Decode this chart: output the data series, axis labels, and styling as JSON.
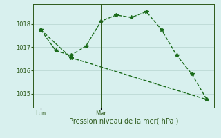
{
  "line1_x": [
    0,
    1,
    2,
    3,
    4,
    5,
    6,
    7,
    8,
    9,
    10,
    11
  ],
  "line1_y": [
    1017.75,
    1016.85,
    1016.65,
    1017.05,
    1018.12,
    1018.38,
    1018.28,
    1018.52,
    1017.75,
    1016.65,
    1015.85,
    1014.75
  ],
  "line2_x": [
    0,
    2,
    11
  ],
  "line2_y": [
    1017.75,
    1016.55,
    1014.75
  ],
  "line_color": "#1a6b1a",
  "bg_color": "#d8f0ee",
  "grid_color": "#c0dcd8",
  "axis_color": "#2d5a1b",
  "xlabel": "Pression niveau de la mer( hPa )",
  "yticks": [
    1015,
    1016,
    1017,
    1018
  ],
  "xtick_labels": [
    "Lun",
    "Mar"
  ],
  "xtick_positions": [
    0,
    4
  ],
  "xlim": [
    -0.5,
    11.5
  ],
  "ylim": [
    1014.4,
    1018.85
  ],
  "marker": "*",
  "markersize": 4,
  "linewidth": 1.0,
  "linestyle": "--",
  "xlabel_fontsize": 7,
  "tick_fontsize": 6,
  "figwidth": 3.2,
  "figheight": 2.0,
  "dpi": 100
}
